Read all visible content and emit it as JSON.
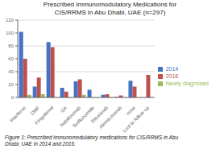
{
  "chart_data": {
    "type": "bar",
    "title": "Prescribed Immunomodulatory Medications for\nCIS/RRMS in Abu Dhabi, UAE (n=297)",
    "caption": "Figure 1: Prescribed immunomodulatory medications for CIS/RRMS in Abu\nDhabi, UAE in 2014 and 2016.",
    "categories": [
      "Interferon",
      "DMF",
      "Fingolimod",
      "GA",
      "Natalizumab",
      "Teriflunomide",
      "Rituximab",
      "Alemtuzumab",
      "none",
      "Lost to follow up"
    ],
    "series": [
      {
        "name": "2014",
        "color": "#4472C4",
        "values": [
          102,
          17,
          86,
          15,
          25,
          12,
          4,
          1,
          26,
          0
        ]
      },
      {
        "name": "2016",
        "color": "#C0504D",
        "values": [
          60,
          31,
          78,
          9,
          28,
          0,
          5,
          3,
          17,
          35
        ]
      },
      {
        "name": "Newly diagnosed",
        "color": "#9BBB59",
        "values": [
          4,
          5,
          0,
          0,
          4,
          0,
          0,
          0,
          0,
          0
        ]
      }
    ],
    "ylim": [
      0,
      120
    ],
    "yticks": [
      0,
      20,
      40,
      60,
      80,
      100,
      120
    ],
    "grid": true,
    "legend": "right"
  }
}
